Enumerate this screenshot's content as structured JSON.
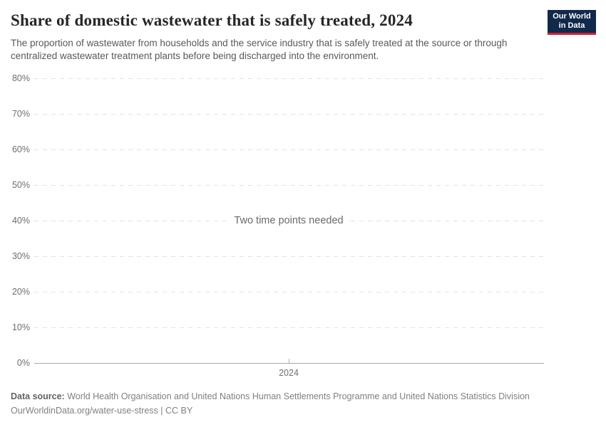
{
  "header": {
    "title": "Share of domestic wastewater that is safely treated, 2024",
    "subtitle": "The proportion of wastewater from households and the service industry that is safely treated at the source or through centralized wastewater treatment plants before being discharged into the environment.",
    "logo": {
      "line1": "Our World",
      "line2": "in Data",
      "bg_color": "#11294a",
      "accent_color": "#cf2336"
    }
  },
  "chart_data": {
    "type": "line",
    "title": "Share of domestic wastewater that is safely treated, 2024",
    "series": [],
    "empty_message": "Two time points needed",
    "x_ticks": [
      "2024"
    ],
    "y_ticks": [
      0,
      10,
      20,
      30,
      40,
      50,
      60,
      70,
      80
    ],
    "y_tick_suffix": "%",
    "ylim": [
      0,
      80
    ],
    "xlabel": "",
    "ylabel": "",
    "grid": true,
    "legend_position": "none",
    "gridline_color": "#e3e3e3",
    "axis_color": "#a8a8a8"
  },
  "footer": {
    "source_label": "Data source:",
    "source_text": " World Health Organisation and United Nations Human Settlements Programme and United Nations Statistics Division",
    "line2": "OurWorldinData.org/water-use-stress | CC BY"
  }
}
